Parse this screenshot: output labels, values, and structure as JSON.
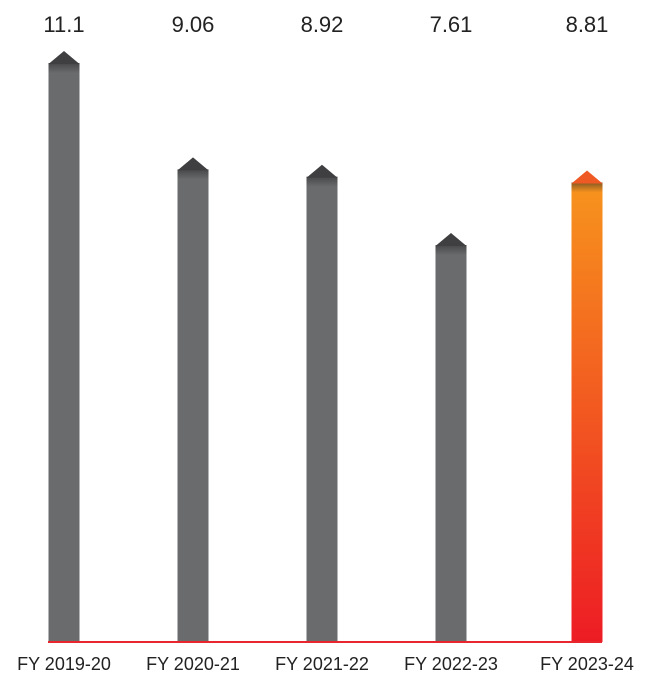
{
  "chart_data": {
    "type": "bar",
    "title": "",
    "xlabel": "",
    "ylabel": "",
    "categories": [
      "FY 2019-20",
      "FY 2020-21",
      "FY 2021-22",
      "FY 2022-23",
      "FY 2023-24"
    ],
    "values": [
      11.1,
      9.06,
      8.92,
      7.61,
      8.81
    ],
    "value_labels": [
      "11.1",
      "9.06",
      "8.92",
      "7.61",
      "8.81"
    ],
    "ylim": [
      0,
      11.1
    ],
    "grid": false,
    "highlight_index": 4,
    "colors": {
      "bar": "#6a6b6d",
      "bar_cap": "#3f3f41",
      "highlight_top": "#f7941d",
      "highlight_bottom": "#ed1c24",
      "highlight_cap": "#ef5a24",
      "baseline": "#e8262d"
    }
  }
}
